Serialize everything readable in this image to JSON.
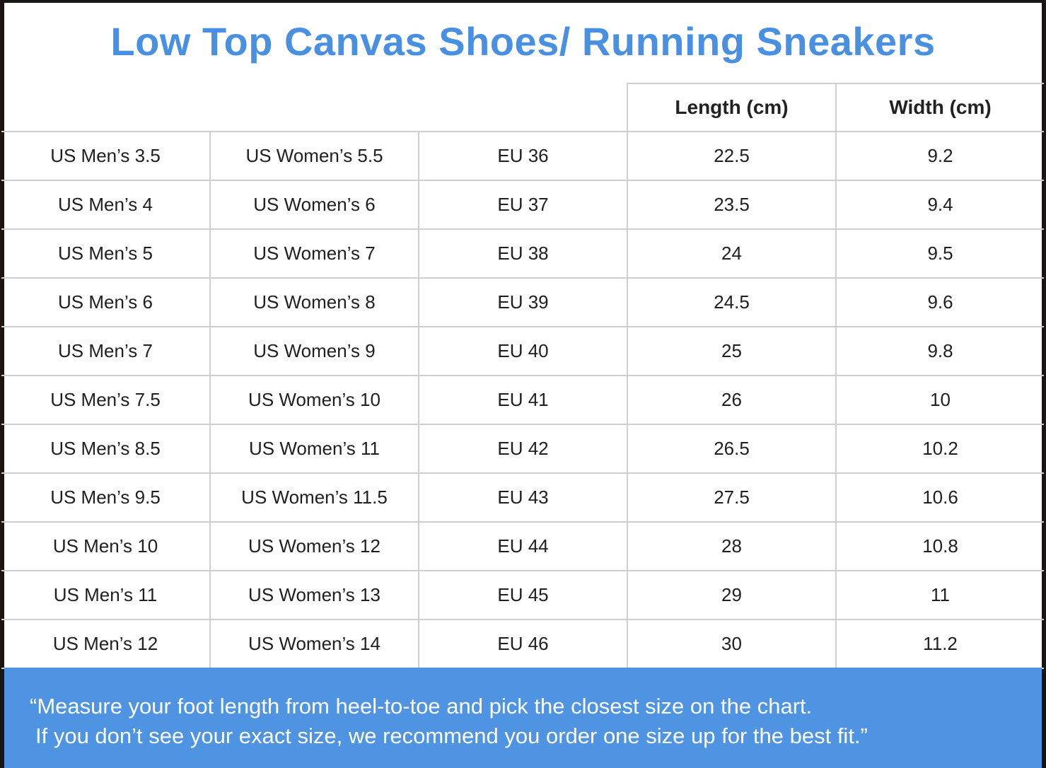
{
  "title": "Low Top Canvas Shoes/ Running Sneakers",
  "table": {
    "headers": [
      "",
      "",
      "",
      "Length (cm)",
      "Width (cm)"
    ],
    "rows": [
      [
        "US Men’s 3.5",
        "US Women’s 5.5",
        "EU 36",
        "22.5",
        "9.2"
      ],
      [
        "US Men’s 4",
        "US Women’s 6",
        "EU 37",
        "23.5",
        "9.4"
      ],
      [
        "US Men’s 5",
        "US Women’s 7",
        "EU 38",
        "24",
        "9.5"
      ],
      [
        "US Men’s 6",
        "US Women’s 8",
        "EU 39",
        "24.5",
        "9.6"
      ],
      [
        "US Men’s 7",
        "US Women’s 9",
        "EU 40",
        "25",
        "9.8"
      ],
      [
        "US Men’s 7.5",
        "US Women’s 10",
        "EU 41",
        "26",
        "10"
      ],
      [
        "US Men’s 8.5",
        "US Women’s 11",
        "EU 42",
        "26.5",
        "10.2"
      ],
      [
        "US Men’s 9.5",
        "US Women’s 11.5",
        "EU 43",
        "27.5",
        "10.6"
      ],
      [
        "US Men’s 10",
        "US Women’s 12",
        "EU 44",
        "28",
        "10.8"
      ],
      [
        "US Men’s 11",
        "US Women’s 13",
        "EU 45",
        "29",
        "11"
      ],
      [
        "US Men’s 12",
        "US Women’s 14",
        "EU 46",
        "30",
        "11.2"
      ]
    ]
  },
  "footer": {
    "line1": "“Measure your foot length from heel-to-toe and pick the closest size on the chart.",
    "line2": "If you don’t see your exact size, we recommend you order one size up for the best fit.”"
  },
  "colors": {
    "title": "#4a90e2",
    "footer_bg": "#4f93e3",
    "grid": "#cfcfcf",
    "frame": "#1a1414"
  }
}
